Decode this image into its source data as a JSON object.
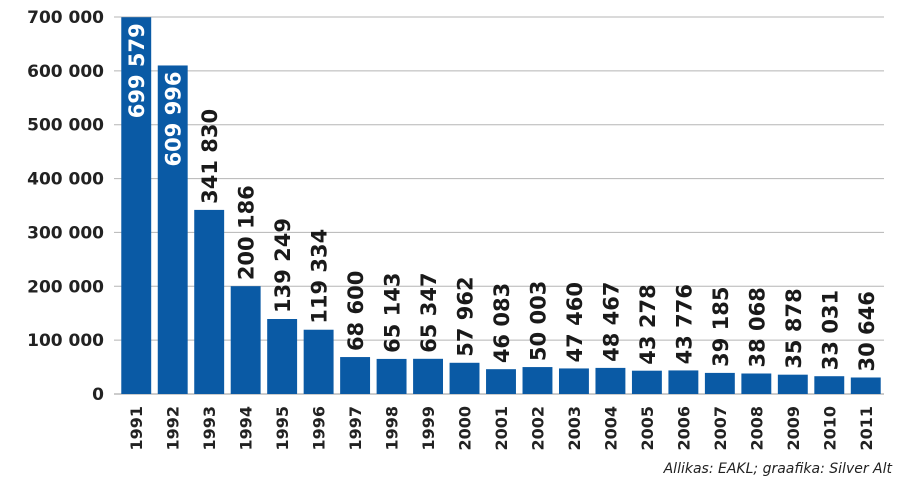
{
  "chart_data": {
    "type": "bar",
    "categories": [
      "1991",
      "1992",
      "1993",
      "1994",
      "1995",
      "1996",
      "1997",
      "1998",
      "1999",
      "2000",
      "2001",
      "2002",
      "2003",
      "2004",
      "2005",
      "2006",
      "2007",
      "2008",
      "2009",
      "2010",
      "2011"
    ],
    "values": [
      699579,
      609996,
      341830,
      200186,
      139249,
      119334,
      68600,
      65143,
      65347,
      57962,
      46083,
      50003,
      47460,
      48467,
      43278,
      43776,
      39185,
      38068,
      35878,
      33031,
      30646
    ],
    "value_labels": [
      "699 579",
      "609 996",
      "341 830",
      "200 186",
      "139 249",
      "119 334",
      "68 600",
      "65 143",
      "65 347",
      "57 962",
      "46 083",
      "50 003",
      "47 460",
      "48 467",
      "43 278",
      "43 776",
      "39 185",
      "38 068",
      "35 878",
      "33 031",
      "30 646"
    ],
    "yticks": [
      0,
      100000,
      200000,
      300000,
      400000,
      500000,
      600000,
      700000
    ],
    "ytick_labels": [
      "0",
      "100 000",
      "200 000",
      "300 000",
      "400 000",
      "500 000",
      "600 000",
      "700 000"
    ],
    "ylim": [
      0,
      700000
    ],
    "grid": true,
    "bar_color": "#0a5aa5",
    "title": "",
    "xlabel": "",
    "ylabel": ""
  },
  "source": "Allikas: EAKL; graafika: Silver Alt"
}
